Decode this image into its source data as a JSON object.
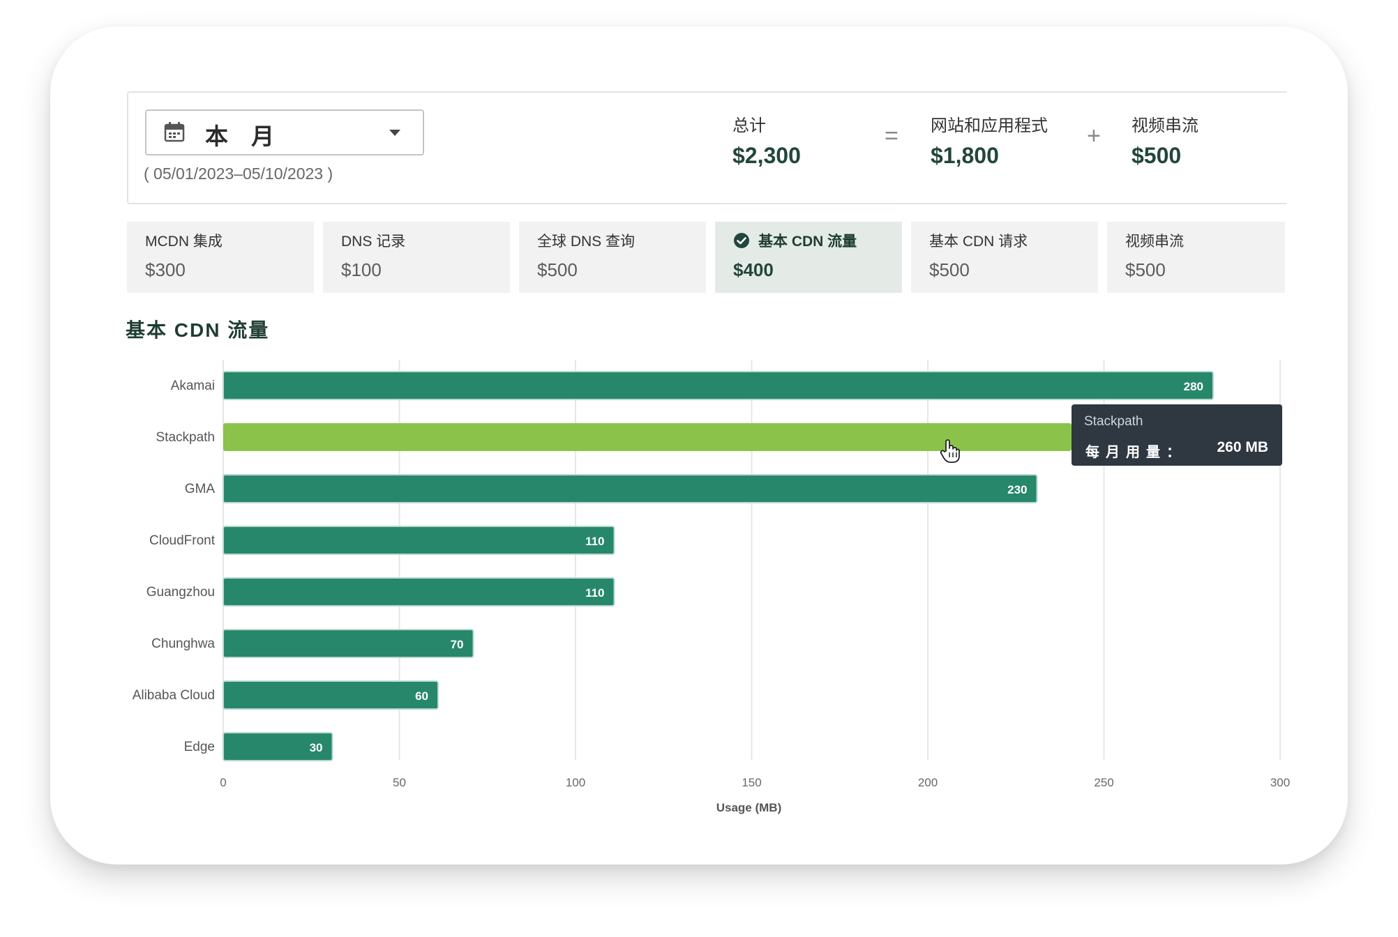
{
  "date_filter": {
    "label": "本 月",
    "range": "( 05/01/2023–05/10/2023 )",
    "icon": "calendar-icon"
  },
  "summary": {
    "total_label": "总计",
    "total_value": "$2,300",
    "equals": "=",
    "web_label": "网站和应用程式",
    "web_value": "$1,800",
    "plus": "+",
    "video_label": "视频串流",
    "video_value": "$500"
  },
  "metrics": [
    {
      "label": "MCDN 集成",
      "value": "$300"
    },
    {
      "label": "DNS 记录",
      "value": "$100"
    },
    {
      "label": "全球 DNS 查询",
      "value": "$500"
    },
    {
      "label": "基本 CDN 流量",
      "value": "$400",
      "selected": true
    },
    {
      "label": "基本 CDN 请求",
      "value": "$500"
    },
    {
      "label": "视频串流",
      "value": "$500"
    }
  ],
  "section_title": "基本 CDN 流量",
  "colors": {
    "bar": "#27876a",
    "bar_highlight": "#8bc34a",
    "accent_dark": "#22463b"
  },
  "chart_data": {
    "type": "bar",
    "orientation": "horizontal",
    "categories": [
      "Akamai",
      "Stackpath",
      "GMA",
      "CloudFront",
      "Guangzhou",
      "Chunghwa",
      "Alibaba Cloud",
      "Edge"
    ],
    "values": [
      280,
      260,
      230,
      110,
      110,
      70,
      60,
      30
    ],
    "data_labels": [
      "280",
      "",
      "230",
      "110",
      "110",
      "70",
      "60",
      "30"
    ],
    "highlighted": "Stackpath",
    "xlim": [
      0,
      300
    ],
    "xticks": [
      "0",
      "50",
      "100",
      "150",
      "200",
      "250",
      "300"
    ],
    "xlabel": "Usage (MB)",
    "grid": true
  },
  "tooltip": {
    "title": "Stackpath",
    "label": "每月用量：",
    "value": "260 MB"
  }
}
